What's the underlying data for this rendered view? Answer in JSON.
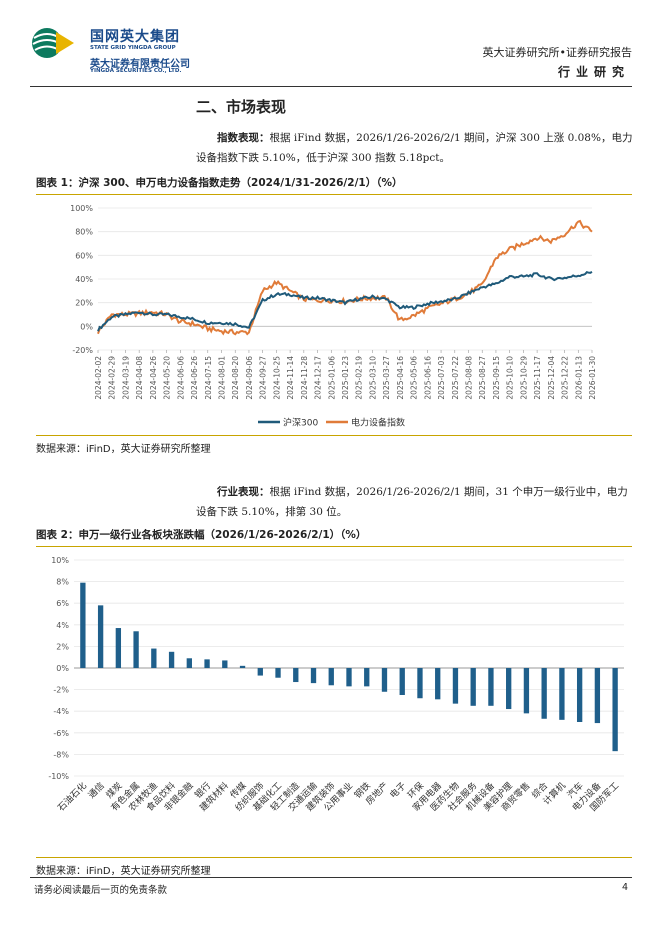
{
  "header": {
    "logo_cn": "国网英大集团",
    "logo_en": "STATE GRID YINGDA GROUP",
    "company_cn": "英大证券有限责任公司",
    "company_en": "YINGDA SECURITIES CO., LTD.",
    "report_type": "英大证券研究所•证券研究报告",
    "category": "行业研究"
  },
  "section_title": "二、市场表现",
  "para1": {
    "lead": "指数表现：",
    "text": "根据 iFind 数据，2026/1/26-2026/2/1 期间，沪深 300 上涨 0.08%，电力设备指数下跌 5.10%，低于沪深 300 指数 5.18pct。"
  },
  "fig1": {
    "title": "图表 1：沪深 300、申万电力设备指数走势（2024/1/31-2026/2/1）（%）",
    "source": "数据来源：iFinD，英大证券研究所整理"
  },
  "para2": {
    "lead": "行业表现：",
    "text": "根据 iFind 数据，2026/1/26-2026/2/1 期间，31 个申万一级行业中，电力设备下跌 5.10%，排第 30 位。"
  },
  "fig2": {
    "title": "图表 2：申万一级行业各板块涨跌幅（2026/1/26-2026/2/1）（%）",
    "source": "数据来源：iFinD，英大证券研究所整理"
  },
  "footer": {
    "disclaimer": "请务必阅读最后一页的免责条款",
    "page": "4"
  },
  "colors": {
    "hs300": "#1f5a7a",
    "power": "#e07b39",
    "bar": "#1f5f8b",
    "accent": "#c8a400"
  },
  "chart_data": [
    {
      "type": "line",
      "title": "图表 1：沪深 300、申万电力设备指数走势（2024/1/31-2026/2/1）（%）",
      "ylim": [
        -20,
        100
      ],
      "yticks": [
        "-20%",
        "0%",
        "20%",
        "40%",
        "60%",
        "80%",
        "100%"
      ],
      "ytick_values": [
        -20,
        0,
        20,
        40,
        60,
        80,
        100
      ],
      "categories": [
        "2024-02-02",
        "2024-02-29",
        "2024-03-19",
        "2024-04-08",
        "2024-04-26",
        "2024-05-20",
        "2024-06-06",
        "2024-06-26",
        "2024-07-15",
        "2024-08-01",
        "2024-08-20",
        "2024-09-06",
        "2024-09-27",
        "2024-10-25",
        "2024-11-14",
        "2024-11-28",
        "2024-12-17",
        "2025-01-06",
        "2025-01-23",
        "2025-02-19",
        "2025-03-10",
        "2025-03-27",
        "2025-04-16",
        "2025-05-06",
        "2025-06-16",
        "2025-07-03",
        "2025-07-22",
        "2025-08-08",
        "2025-08-27",
        "2025-09-15",
        "2025-10-10",
        "2025-10-29",
        "2025-11-17",
        "2025-12-04",
        "2025-12-22",
        "2026-01-13",
        "2026-01-30"
      ],
      "series": [
        {
          "name": "沪深300",
          "values": [
            -3,
            8,
            10,
            12,
            10,
            10,
            8,
            6,
            3,
            3,
            2,
            -1,
            22,
            27,
            27,
            24,
            24,
            22,
            20,
            23,
            25,
            23,
            16,
            16,
            19,
            21,
            23,
            28,
            33,
            36,
            42,
            42,
            44,
            40,
            41,
            43,
            46
          ]
        },
        {
          "name": "电力设备指数",
          "values": [
            -5,
            10,
            10,
            11,
            12,
            10,
            4,
            2,
            -2,
            -4,
            -5,
            -5,
            30,
            37,
            30,
            23,
            22,
            22,
            21,
            23,
            24,
            24,
            5,
            9,
            15,
            19,
            23,
            28,
            35,
            58,
            65,
            70,
            75,
            72,
            78,
            88,
            80
          ]
        }
      ],
      "legend": "bottom-center"
    },
    {
      "type": "bar",
      "title": "图表 2：申万一级行业各板块涨跌幅（2026/1/26-2026/2/1）（%）",
      "ylim": [
        -10,
        10
      ],
      "yticks": [
        "-10%",
        "-8%",
        "-6%",
        "-4%",
        "-2%",
        "0%",
        "2%",
        "4%",
        "6%",
        "8%",
        "10%"
      ],
      "ytick_values": [
        -10,
        -8,
        -6,
        -4,
        -2,
        0,
        2,
        4,
        6,
        8,
        10
      ],
      "categories": [
        "石油石化",
        "通信",
        "煤炭",
        "有色金属",
        "农林牧渔",
        "食品饮料",
        "非银金融",
        "银行",
        "建筑材料",
        "传媒",
        "纺织服饰",
        "基础化工",
        "轻工制造",
        "交通运输",
        "建筑装饰",
        "公用事业",
        "钢铁",
        "房地产",
        "电子",
        "环保",
        "家用电器",
        "医药生物",
        "社会服务",
        "机械设备",
        "美容护理",
        "商贸零售",
        "综合",
        "计算机",
        "汽车",
        "电力设备",
        "国防军工"
      ],
      "values": [
        7.9,
        5.8,
        3.7,
        3.4,
        1.8,
        1.5,
        0.9,
        0.8,
        0.7,
        0.2,
        -0.7,
        -0.9,
        -1.3,
        -1.4,
        -1.6,
        -1.7,
        -1.7,
        -2.2,
        -2.5,
        -2.8,
        -2.9,
        -3.3,
        -3.5,
        -3.5,
        -3.8,
        -4.2,
        -4.7,
        -4.8,
        -5.0,
        -5.1,
        -7.7
      ]
    }
  ]
}
